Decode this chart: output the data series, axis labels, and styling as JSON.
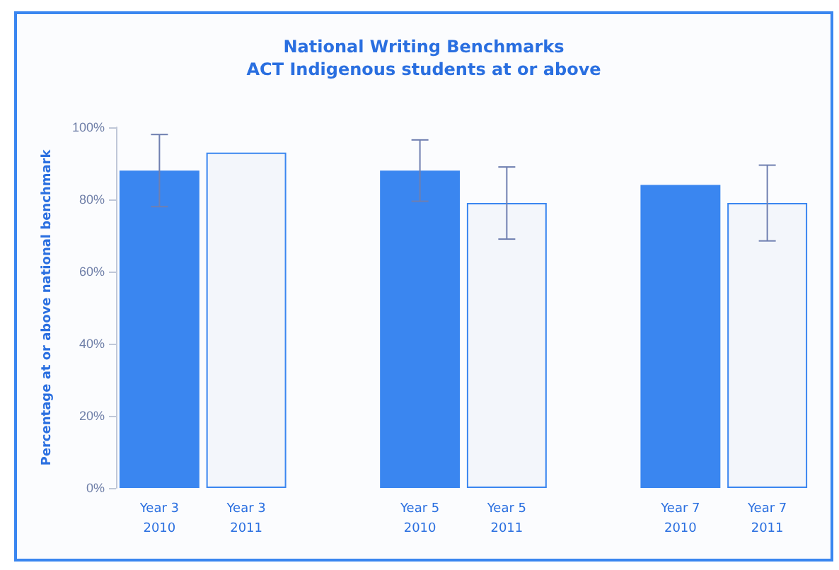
{
  "chart_data": {
    "type": "bar",
    "title": "National Writing Benchmarks\nACT Indigenous students at or above",
    "ylabel": "Percentage at or above national benchmark",
    "categories": [
      "Year 3\n2010",
      "Year 3\n2011",
      null,
      "Year 5\n2010",
      "Year 5\n2011",
      null,
      "Year 7\n2010",
      "Year 7\n2011"
    ],
    "values": [
      88,
      93,
      null,
      88,
      79,
      null,
      84,
      79
    ],
    "colors": [
      "#3a86f0",
      "#f3f6fb",
      null,
      "#3a86f0",
      "#f3f6fb",
      null,
      "#3a86f0",
      "#f3f6fb"
    ],
    "errors": [
      10,
      null,
      null,
      8.5,
      10,
      null,
      null,
      10.5
    ],
    "ylim": [
      0,
      100
    ],
    "yticks": [
      {
        "value": 0,
        "label": "0%"
      },
      {
        "value": 20,
        "label": "20%"
      },
      {
        "value": 40,
        "label": "40%"
      },
      {
        "value": 60,
        "label": "60%"
      },
      {
        "value": 80,
        "label": "80%"
      },
      {
        "value": 100,
        "label": "100%"
      }
    ],
    "grid": false
  }
}
